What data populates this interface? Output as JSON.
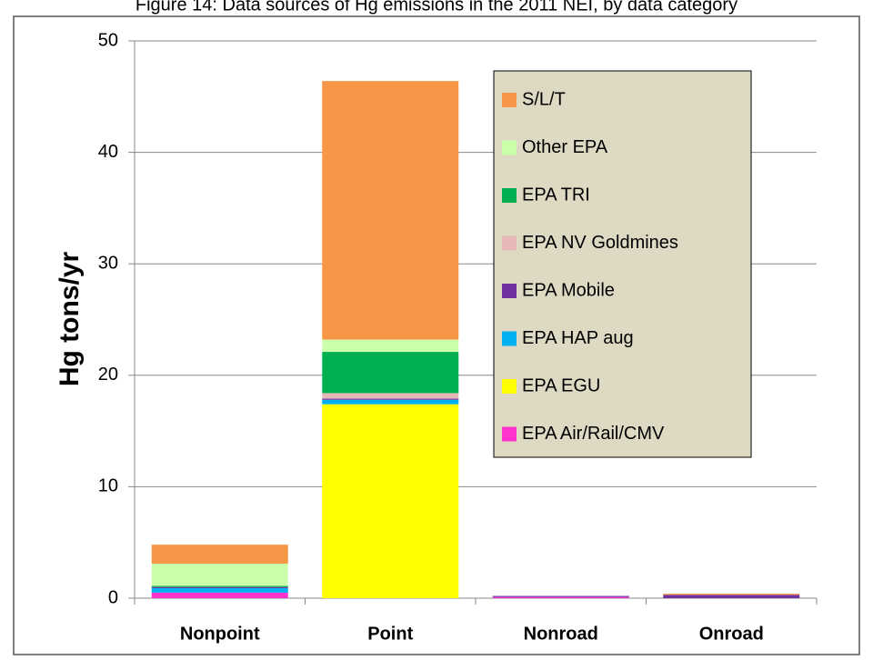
{
  "chart_data": {
    "type": "stacked-bar",
    "title": "Figure 14: Data sources of Hg emissions in the 2011 NEI, by data category",
    "y_label": "Hg tons/yr",
    "categories": [
      "Nonpoint",
      "Point",
      "Nonroad",
      "Onroad"
    ],
    "series": [
      {
        "name": "EPA Air/Rail/CMV",
        "color": "#ff33cc",
        "values": [
          0.5,
          0,
          0.1,
          0
        ]
      },
      {
        "name": "EPA EGU",
        "color": "#ffff00",
        "values": [
          0,
          17.4,
          0,
          0
        ]
      },
      {
        "name": "EPA HAP aug",
        "color": "#00b0f0",
        "values": [
          0.4,
          0.4,
          0,
          0
        ]
      },
      {
        "name": "EPA Mobile",
        "color": "#7030a0",
        "values": [
          0.1,
          0.1,
          0.1,
          0.3
        ]
      },
      {
        "name": "EPA NV Goldmines",
        "color": "#e6b9b8",
        "values": [
          0,
          0.5,
          0,
          0
        ]
      },
      {
        "name": "EPA TRI",
        "color": "#00b050",
        "values": [
          0.1,
          3.7,
          0,
          0
        ]
      },
      {
        "name": "Other EPA",
        "color": "#ccffaa",
        "values": [
          2.0,
          1.1,
          0,
          0
        ]
      },
      {
        "name": "S/L/T",
        "color": "#f79646",
        "values": [
          1.7,
          23.2,
          0,
          0.1
        ]
      }
    ],
    "ylim": [
      0,
      50
    ],
    "yticks": [
      0,
      10,
      20,
      30,
      40,
      50
    ],
    "grid": true
  }
}
